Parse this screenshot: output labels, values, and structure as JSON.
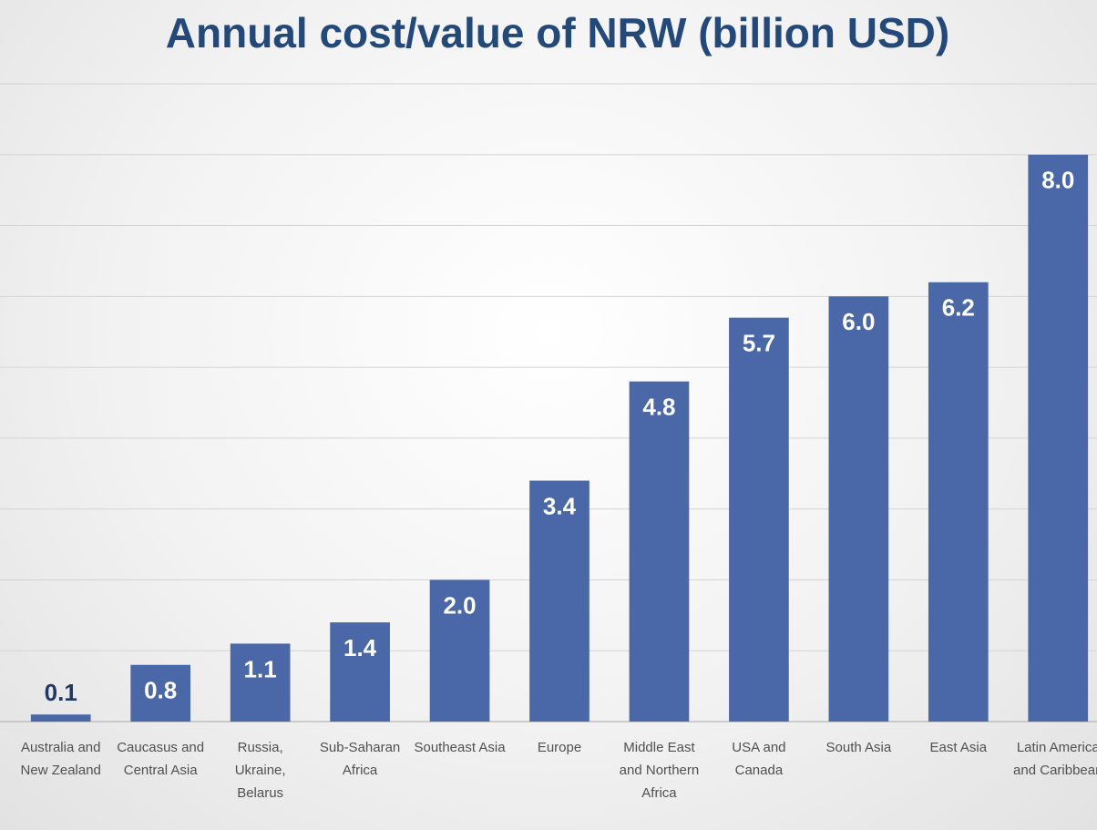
{
  "chart_data": {
    "type": "bar",
    "title": "Annual cost/value of NRW (billion USD)",
    "categories": [
      "Australia and New Zealand",
      "Caucasus and Central Asia",
      "Russia, Ukraine, Belarus",
      "Sub-Saharan Africa",
      "Southeast Asia",
      "Europe",
      "Middle East and Northern Africa",
      "USA and Canada",
      "South Asia",
      "East Asia",
      "Latin America and Caribbean"
    ],
    "values": [
      0.1,
      0.8,
      1.1,
      1.4,
      2.0,
      3.4,
      4.8,
      5.7,
      6.0,
      6.2,
      8.0
    ],
    "value_labels": [
      "0.1",
      "0.8",
      "1.1",
      "1.4",
      "2.0",
      "3.4",
      "4.8",
      "5.7",
      "6.0",
      "6.2",
      "8.0"
    ],
    "color": "#4a67a8",
    "ylim": [
      0,
      9
    ],
    "yticks": [
      1,
      2,
      3,
      4,
      5,
      6,
      7,
      8,
      9
    ],
    "grid": true
  }
}
